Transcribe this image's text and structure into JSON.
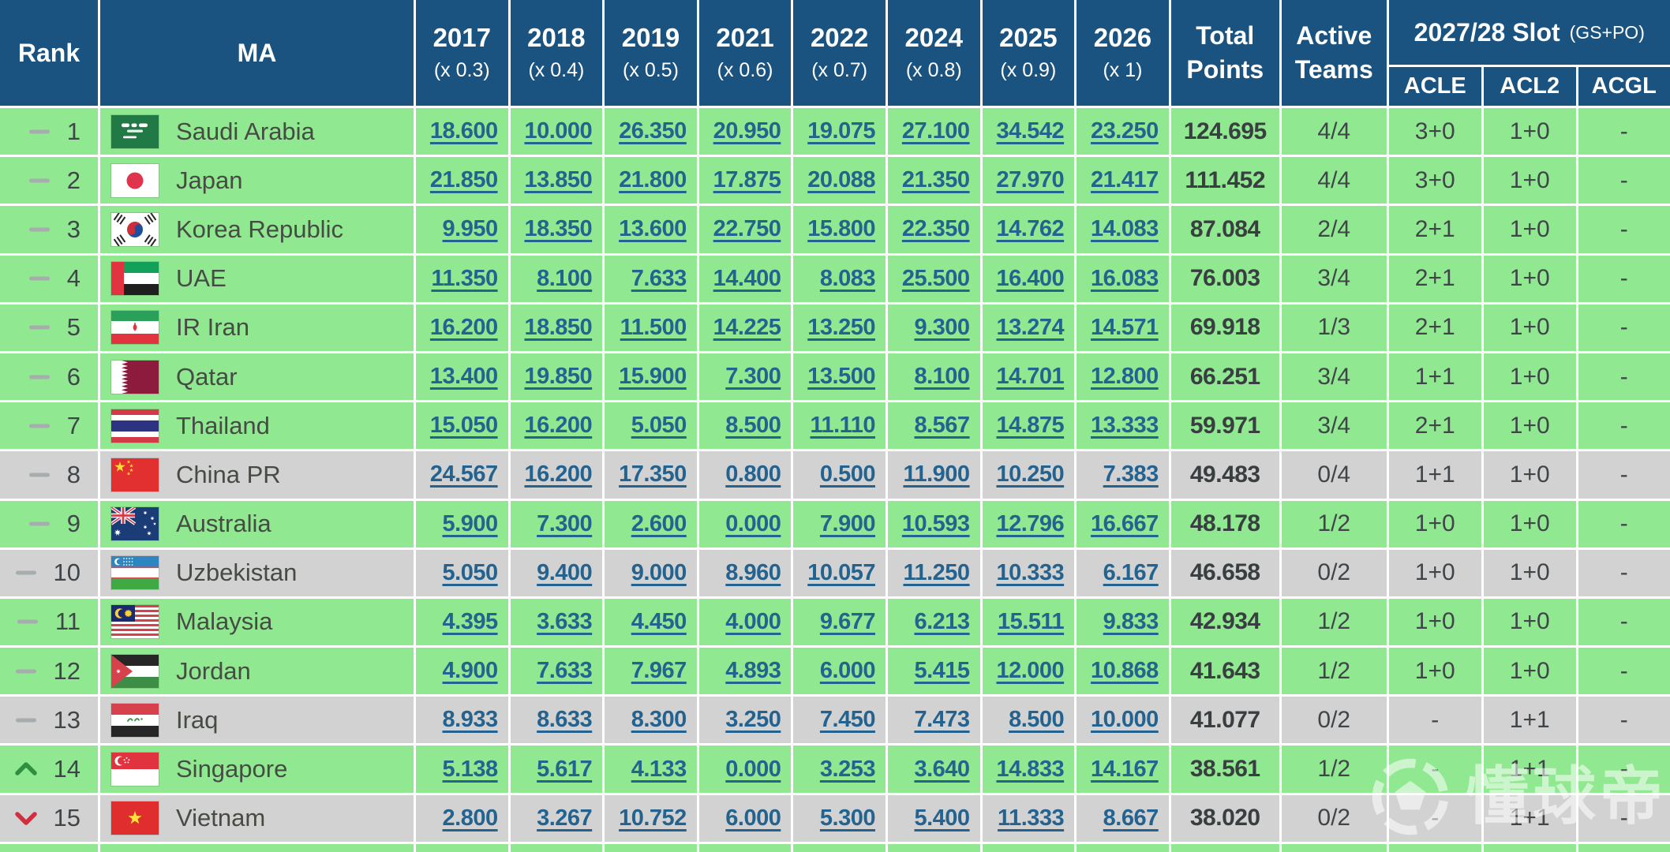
{
  "chart_data": {
    "type": "table",
    "columns": {
      "rank": "Rank",
      "ma": "MA",
      "years": [
        {
          "year": "2017",
          "mult": "(x 0.3)"
        },
        {
          "year": "2018",
          "mult": "(x 0.4)"
        },
        {
          "year": "2019",
          "mult": "(x 0.5)"
        },
        {
          "year": "2021",
          "mult": "(x 0.6)"
        },
        {
          "year": "2022",
          "mult": "(x 0.7)"
        },
        {
          "year": "2024",
          "mult": "(x 0.8)"
        },
        {
          "year": "2025",
          "mult": "(x 0.9)"
        },
        {
          "year": "2026",
          "mult": "(x 1)"
        }
      ],
      "total_line1": "Total",
      "total_line2": "Points",
      "active_line1": "Active",
      "active_line2": "Teams",
      "slot_group": {
        "title": "2027/28 Slot",
        "suffix": "(GS+PO)",
        "subcols": [
          "ACLE",
          "ACL2",
          "ACGL"
        ]
      }
    },
    "rows": [
      {
        "rank": "1",
        "trend": "same",
        "country": "Saudi Arabia",
        "flag": "sa",
        "values": [
          "18.600",
          "10.000",
          "26.350",
          "20.950",
          "19.075",
          "27.100",
          "34.542",
          "23.250"
        ],
        "total": "124.695",
        "active": "4/4",
        "slots": [
          "3+0",
          "1+0",
          "-"
        ],
        "tone": "green"
      },
      {
        "rank": "2",
        "trend": "same",
        "country": "Japan",
        "flag": "jp",
        "values": [
          "21.850",
          "13.850",
          "21.800",
          "17.875",
          "20.088",
          "21.350",
          "27.970",
          "21.417"
        ],
        "total": "111.452",
        "active": "4/4",
        "slots": [
          "3+0",
          "1+0",
          "-"
        ],
        "tone": "green"
      },
      {
        "rank": "3",
        "trend": "same",
        "country": "Korea Republic",
        "flag": "kr",
        "values": [
          "9.950",
          "18.350",
          "13.600",
          "22.750",
          "15.800",
          "22.350",
          "14.762",
          "14.083"
        ],
        "total": "87.084",
        "active": "2/4",
        "slots": [
          "2+1",
          "1+0",
          "-"
        ],
        "tone": "green"
      },
      {
        "rank": "4",
        "trend": "same",
        "country": "UAE",
        "flag": "ae",
        "values": [
          "11.350",
          "8.100",
          "7.633",
          "14.400",
          "8.083",
          "25.500",
          "16.400",
          "16.083"
        ],
        "total": "76.003",
        "active": "3/4",
        "slots": [
          "2+1",
          "1+0",
          "-"
        ],
        "tone": "green"
      },
      {
        "rank": "5",
        "trend": "same",
        "country": "IR Iran",
        "flag": "ir",
        "values": [
          "16.200",
          "18.850",
          "11.500",
          "14.225",
          "13.250",
          "9.300",
          "13.274",
          "14.571"
        ],
        "total": "69.918",
        "active": "1/3",
        "slots": [
          "2+1",
          "1+0",
          "-"
        ],
        "tone": "green"
      },
      {
        "rank": "6",
        "trend": "same",
        "country": "Qatar",
        "flag": "qa",
        "values": [
          "13.400",
          "19.850",
          "15.900",
          "7.300",
          "13.500",
          "8.100",
          "14.701",
          "12.800"
        ],
        "total": "66.251",
        "active": "3/4",
        "slots": [
          "1+1",
          "1+0",
          "-"
        ],
        "tone": "green"
      },
      {
        "rank": "7",
        "trend": "same",
        "country": "Thailand",
        "flag": "th",
        "values": [
          "15.050",
          "16.200",
          "5.050",
          "8.500",
          "11.110",
          "8.567",
          "14.875",
          "13.333"
        ],
        "total": "59.971",
        "active": "3/4",
        "slots": [
          "2+1",
          "1+0",
          "-"
        ],
        "tone": "green"
      },
      {
        "rank": "8",
        "trend": "same",
        "country": "China PR",
        "flag": "cn",
        "values": [
          "24.567",
          "16.200",
          "17.350",
          "0.800",
          "0.500",
          "11.900",
          "10.250",
          "7.383"
        ],
        "total": "49.483",
        "active": "0/4",
        "slots": [
          "1+1",
          "1+0",
          "-"
        ],
        "tone": "gray"
      },
      {
        "rank": "9",
        "trend": "same",
        "country": "Australia",
        "flag": "au",
        "values": [
          "5.900",
          "7.300",
          "2.600",
          "0.000",
          "7.900",
          "10.593",
          "12.796",
          "16.667"
        ],
        "total": "48.178",
        "active": "1/2",
        "slots": [
          "1+0",
          "1+0",
          "-"
        ],
        "tone": "green"
      },
      {
        "rank": "10",
        "trend": "same",
        "country": "Uzbekistan",
        "flag": "uz",
        "values": [
          "5.050",
          "9.400",
          "9.000",
          "8.960",
          "10.057",
          "11.250",
          "10.333",
          "6.167"
        ],
        "total": "46.658",
        "active": "0/2",
        "slots": [
          "1+0",
          "1+0",
          "-"
        ],
        "tone": "gray"
      },
      {
        "rank": "11",
        "trend": "same",
        "country": "Malaysia",
        "flag": "my",
        "values": [
          "4.395",
          "3.633",
          "4.450",
          "4.000",
          "9.677",
          "6.213",
          "15.511",
          "9.833"
        ],
        "total": "42.934",
        "active": "1/2",
        "slots": [
          "1+0",
          "1+0",
          "-"
        ],
        "tone": "green"
      },
      {
        "rank": "12",
        "trend": "same",
        "country": "Jordan",
        "flag": "jo",
        "values": [
          "4.900",
          "7.633",
          "7.967",
          "4.893",
          "6.000",
          "5.415",
          "12.000",
          "10.868"
        ],
        "total": "41.643",
        "active": "1/2",
        "slots": [
          "1+0",
          "1+0",
          "-"
        ],
        "tone": "green"
      },
      {
        "rank": "13",
        "trend": "same",
        "country": "Iraq",
        "flag": "iq",
        "values": [
          "8.933",
          "8.633",
          "8.300",
          "3.250",
          "7.450",
          "7.473",
          "8.500",
          "10.000"
        ],
        "total": "41.077",
        "active": "0/2",
        "slots": [
          "-",
          "1+1",
          "-"
        ],
        "tone": "gray"
      },
      {
        "rank": "14",
        "trend": "up",
        "country": "Singapore",
        "flag": "sg",
        "values": [
          "5.138",
          "5.617",
          "4.133",
          "0.000",
          "3.253",
          "3.640",
          "14.833",
          "14.167"
        ],
        "total": "38.561",
        "active": "1/2",
        "slots": [
          "-",
          "1+1",
          "-"
        ],
        "tone": "green"
      },
      {
        "rank": "15",
        "trend": "down",
        "country": "Vietnam",
        "flag": "vn",
        "values": [
          "2.800",
          "3.267",
          "10.752",
          "6.000",
          "5.300",
          "5.400",
          "11.333",
          "8.667"
        ],
        "total": "38.020",
        "active": "0/2",
        "slots": [
          "-",
          "1+1",
          "-"
        ],
        "tone": "gray"
      }
    ]
  },
  "watermark": {
    "text": "懂球帝"
  },
  "colors": {
    "header_bg": "#1b5380",
    "row_green": "#90e890",
    "row_gray": "#d2d2d2",
    "link": "#24638f",
    "trend_up": "#2f8f3f",
    "trend_down": "#cf2f3f",
    "trend_same": "#a7acae"
  }
}
